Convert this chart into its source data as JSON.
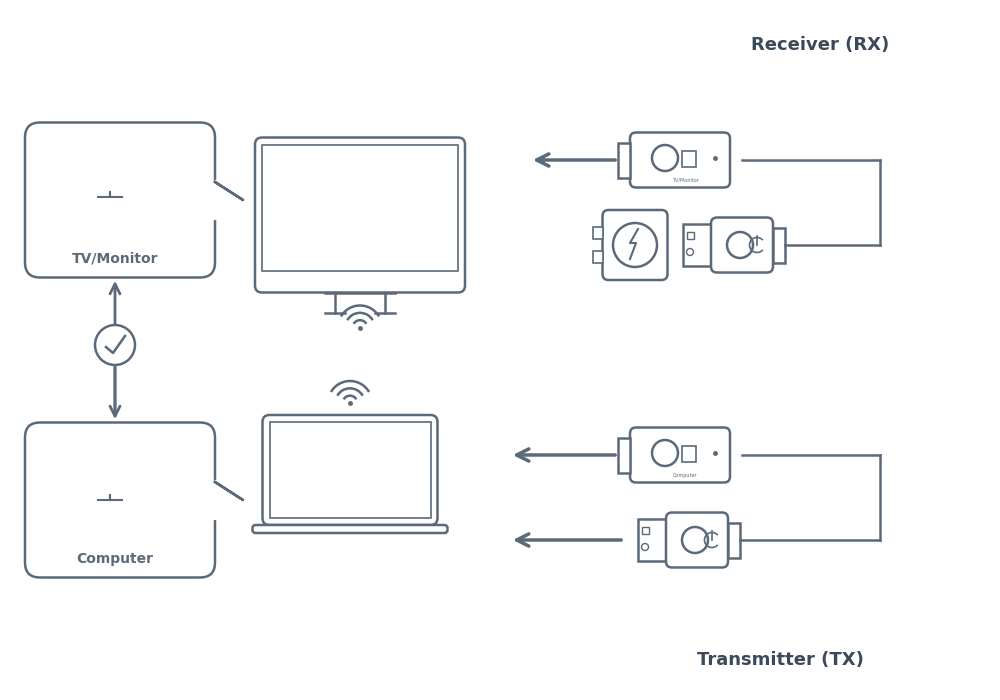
{
  "bg_color": "#ffffff",
  "line_color": "#5a6a7a",
  "title_rx": "Receiver (RX)",
  "title_tx": "Transmitter (TX)",
  "label_tv": "TV/Monitor",
  "label_computer": "Computer",
  "fig_width": 10.0,
  "fig_height": 7.0,
  "dpi": 100
}
